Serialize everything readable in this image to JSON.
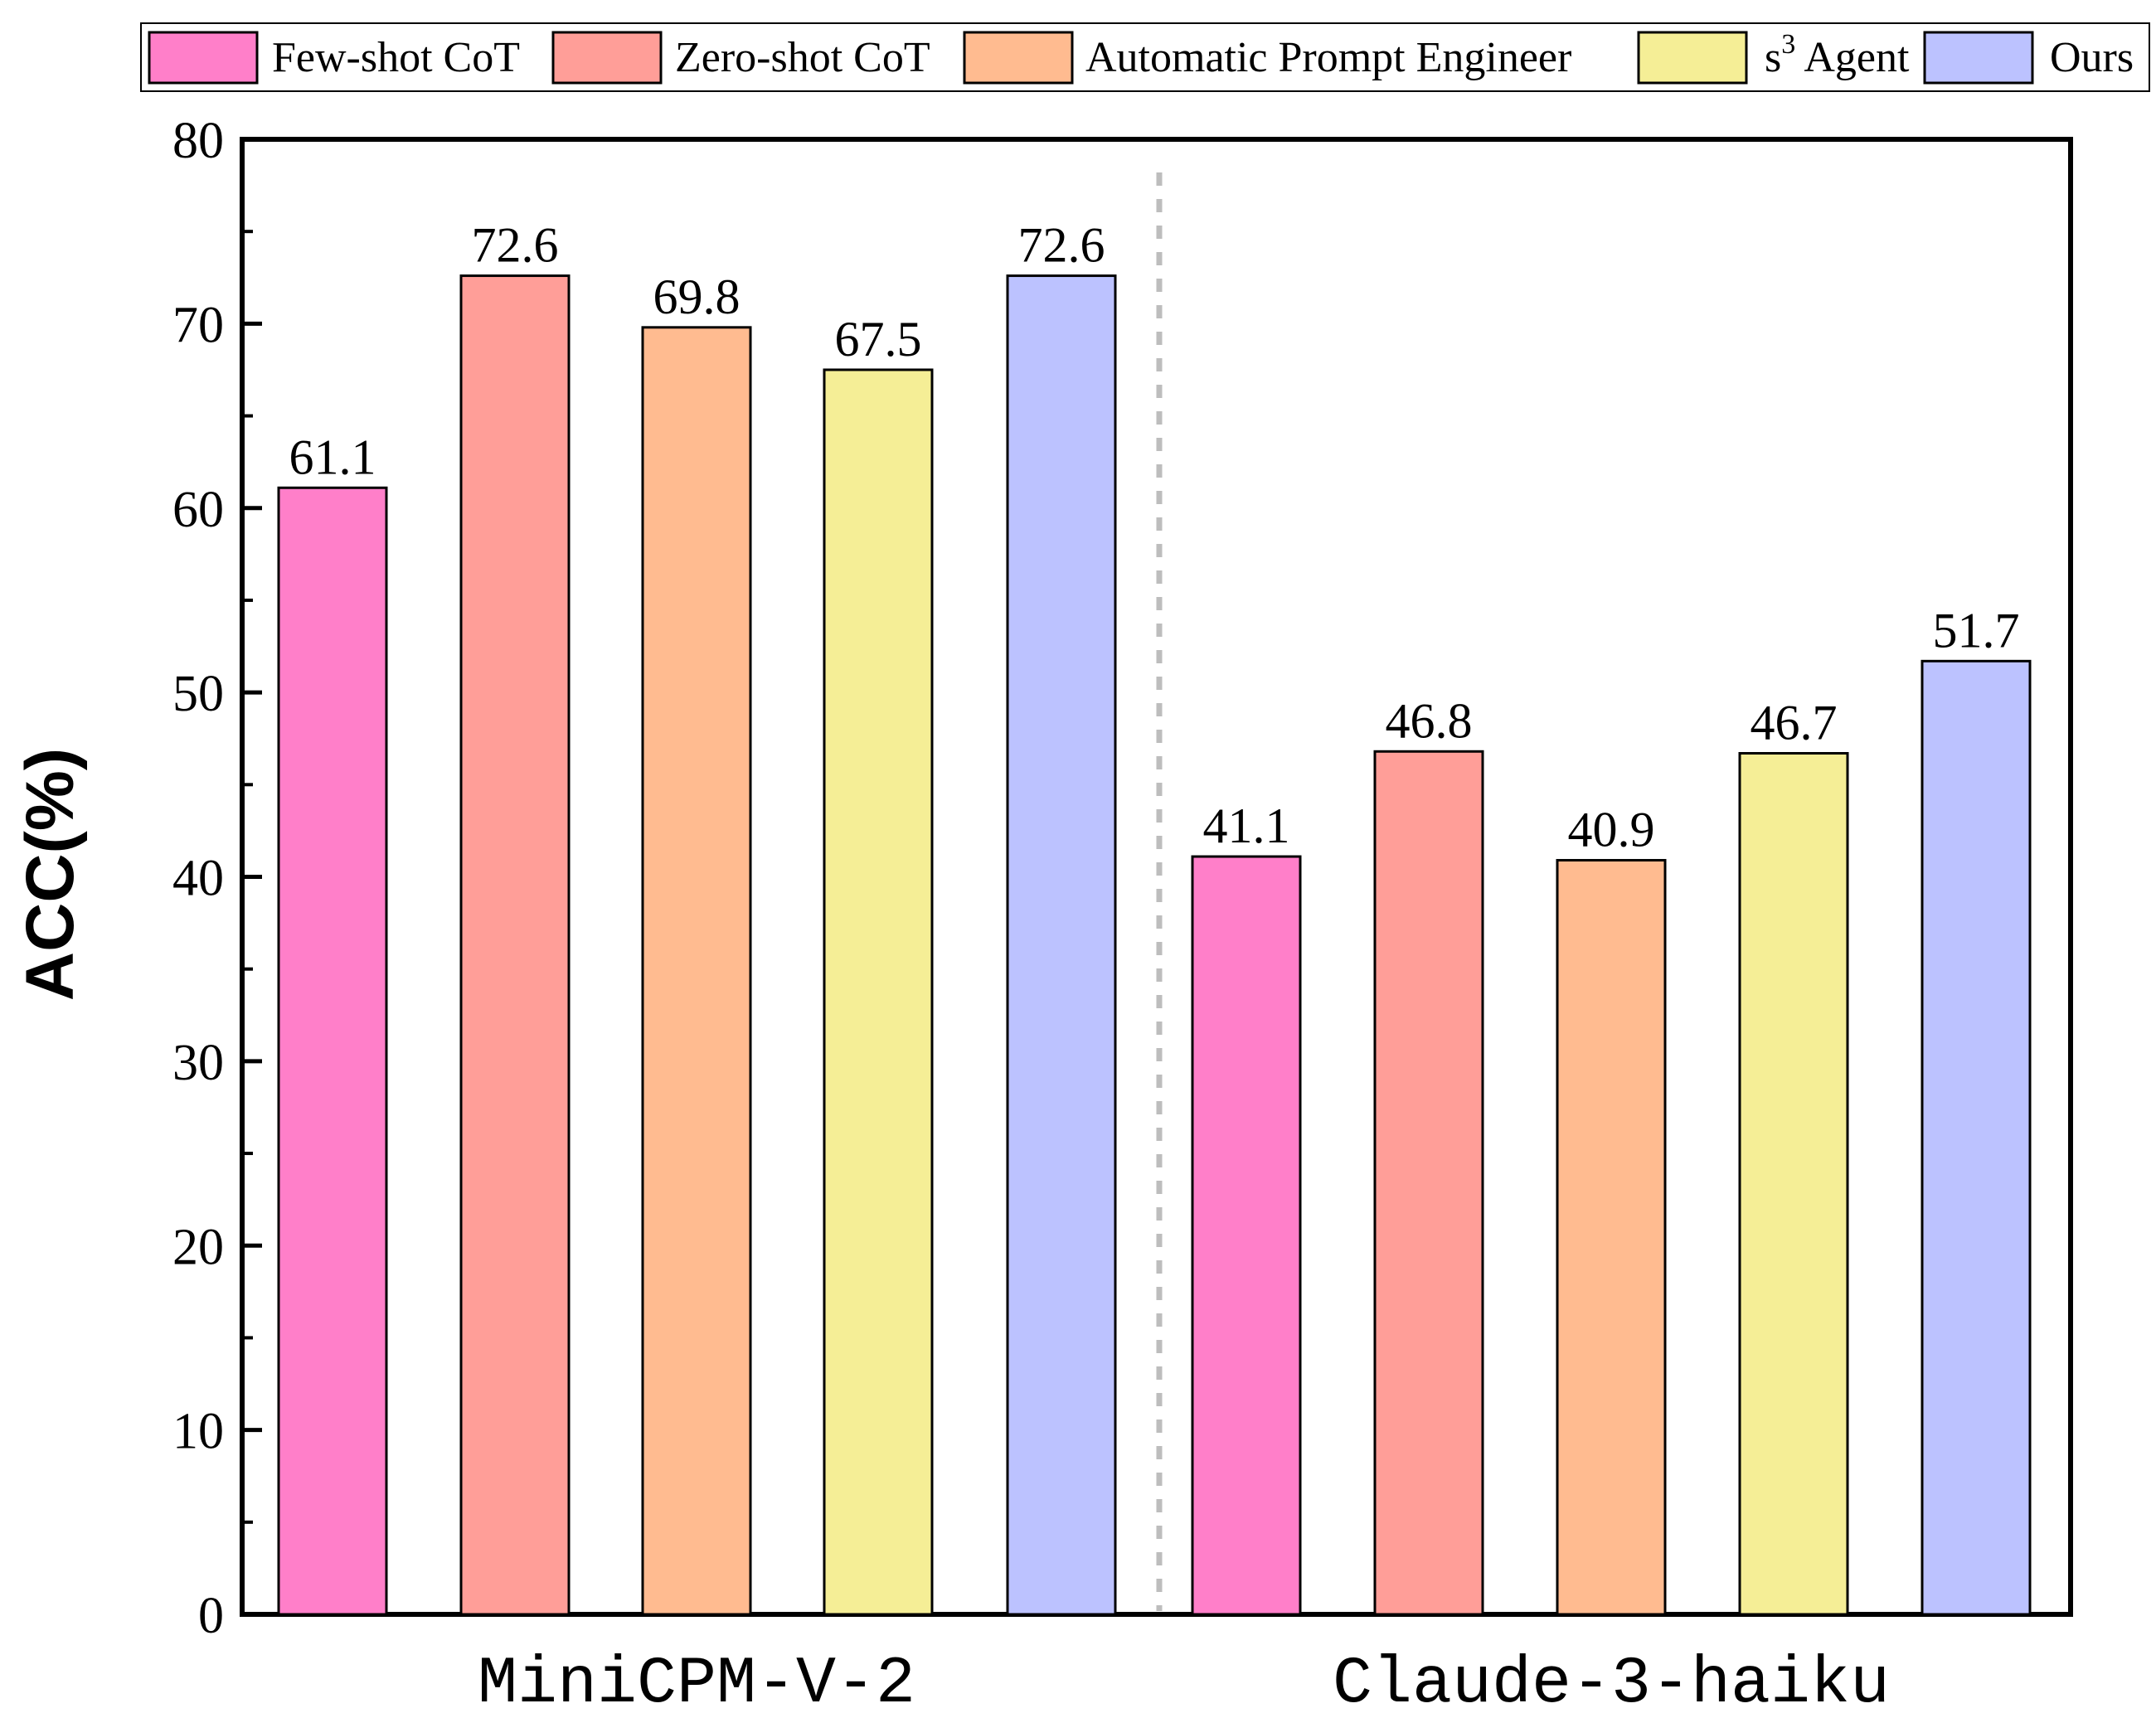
{
  "chart_data": {
    "type": "bar",
    "categories": [
      "MiniCPM-V-2",
      "Claude-3-haiku"
    ],
    "series": [
      {
        "name": "Few-shot CoT",
        "values": [
          61.1,
          41.1
        ],
        "labels": [
          "61.1",
          "41.1"
        ],
        "color": "#FF7FC9"
      },
      {
        "name": "Zero-shot CoT",
        "values": [
          72.6,
          46.8
        ],
        "labels": [
          "72.6",
          "46.8"
        ],
        "color": "#FF9E98"
      },
      {
        "name": "Automatic Prompt Engineer",
        "values": [
          69.8,
          40.9
        ],
        "labels": [
          "69.8",
          "40.9"
        ],
        "color": "#FFBB90"
      },
      {
        "name": "s Agent",
        "name_superscript": "3",
        "values": [
          67.5,
          46.7
        ],
        "labels": [
          "67.5",
          "46.7"
        ],
        "color": "#F5EE96"
      },
      {
        "name": "Ours",
        "values": [
          72.6,
          51.7
        ],
        "labels": [
          "72.6",
          "51.7"
        ],
        "color": "#BCC2FF"
      }
    ],
    "ylabel": "ACC(%)",
    "xlabel": "",
    "ylim": [
      0,
      80
    ],
    "yticks": [
      "0",
      "10",
      "20",
      "30",
      "40",
      "50",
      "60",
      "70",
      "80"
    ],
    "legend_position": "top",
    "grid": false,
    "group_separator": "dashed"
  }
}
